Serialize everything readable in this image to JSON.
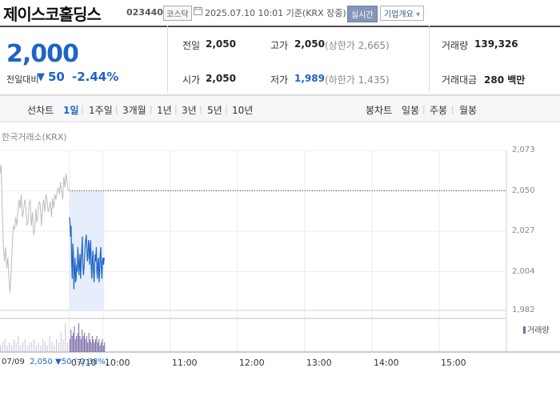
{
  "header": {
    "company_name": "제이스코홀딩스",
    "stock_code": "023440",
    "market_badge": "코스닥",
    "as_of": "2025.07.10 10:01 기준(KRX 장중)",
    "realtime_button": "실시간",
    "company_info_button": "기업개요",
    "company_info_arrow": "▾"
  },
  "quote": {
    "price": "2,000",
    "change_label": "전일대비",
    "change_direction": "▼",
    "change_value": "50",
    "change_percent": "-2.44%",
    "prev_close_label": "전일",
    "prev_close": "2,050",
    "open_label": "시가",
    "open": "2,050",
    "high_label": "고가",
    "high": "2,050",
    "upper_limit": "(상한가 2,665)",
    "low_label": "저가",
    "low": "1,989",
    "lower_limit": "(하한가 1,435)",
    "volume_label": "거래량",
    "volume": "139,326",
    "amount_label": "거래대금",
    "amount": "280 백만"
  },
  "periods": {
    "line_label": "선차트",
    "line_tabs": [
      "1일",
      "1주일",
      "3개월",
      "1년",
      "3년",
      "5년",
      "10년"
    ],
    "active": "1일",
    "candle_label": "봉차트",
    "candle_tabs": [
      "일봉",
      "주봉",
      "월봉"
    ]
  },
  "colors": {
    "down": "#1f63c6",
    "prev_line": "#bdbdbd",
    "today_area": "#e6eefb",
    "volume": "#7b68a6"
  },
  "chart_data": {
    "type": "line",
    "source_label": "한국거래소(KRX)",
    "y_ticks": [
      "2,073",
      "2,050",
      "2,027",
      "2,004",
      "1,982"
    ],
    "ylim": [
      1982,
      2073
    ],
    "reference_line": 2050,
    "x_ticks": [
      "07/10",
      "10:00",
      "11:00",
      "12:00",
      "13:00",
      "14:00",
      "15:00"
    ],
    "x_domain_minutes": [
      -62,
      390
    ],
    "prev_day_label": "07/09",
    "series": [
      {
        "x": [
          -62,
          -61,
          -60,
          -59,
          -58,
          -57,
          -56,
          -55,
          -54,
          -53,
          -52,
          -51,
          -50,
          -49,
          -48,
          -47,
          -46,
          -45,
          -44,
          -43,
          -42,
          -41,
          -40,
          -39,
          -38,
          -37,
          -36,
          -35,
          -34,
          -33,
          -32,
          -31,
          -30,
          -29,
          -28,
          -27,
          -26,
          -25,
          -24,
          -23,
          -22,
          -21,
          -20,
          -19,
          -18,
          -17,
          -16,
          -15,
          -14,
          -13,
          -12,
          -11,
          -10,
          -9,
          -8,
          -7,
          -6,
          -5,
          -4,
          -3,
          -2,
          -1
        ],
        "values": [
          2060,
          2065,
          2040,
          2018,
          2010,
          2018,
          2006,
          2012,
          2000,
          1992,
          2005,
          2020,
          2030,
          2028,
          2035,
          2030,
          2038,
          2045,
          2040,
          2048,
          2035,
          2038,
          2045,
          2042,
          2030,
          2032,
          2042,
          2045,
          2030,
          2038,
          2025,
          2028,
          2040,
          2032,
          2038,
          2044,
          2042,
          2030,
          2040,
          2045,
          2038,
          2048,
          2045,
          2038,
          2040,
          2044,
          2035,
          2046,
          2040,
          2048,
          2045,
          2050,
          2052,
          2048,
          2055,
          2050,
          2045,
          2058,
          2052,
          2060,
          2055,
          2050
        ]
      },
      {
        "x": [
          0,
          0.5,
          1,
          1.5,
          2,
          2.5,
          3,
          3.5,
          4,
          4.5,
          5,
          5.5,
          6,
          6.5,
          7,
          7.5,
          8,
          8.5,
          9,
          9.5,
          10,
          10.5,
          11,
          11.5,
          12,
          12.5,
          13,
          13.5,
          14,
          14.5,
          15,
          15.5,
          16,
          16.5,
          17,
          17.5,
          18,
          18.5,
          19,
          19.5,
          20,
          20.5,
          21,
          21.5,
          22,
          22.5,
          23,
          23.5,
          24,
          24.5,
          25,
          25.5,
          26,
          26.5,
          27,
          27.5,
          28,
          28.5,
          29,
          29.5,
          30,
          30.5,
          31
        ],
        "values": [
          2035,
          2032,
          2024,
          2030,
          2010,
          2000,
          2020,
          2015,
          1994,
          2005,
          2012,
          1998,
          2000,
          2008,
          2004,
          2018,
          2012,
          2002,
          2008,
          2014,
          2000,
          2010,
          2016,
          2024,
          2008,
          2002,
          2006,
          2012,
          2018,
          2022,
          2025,
          2018,
          2010,
          2012,
          2022,
          2020,
          2008,
          2016,
          2022,
          2006,
          2000,
          2012,
          2016,
          2004,
          1998,
          2008,
          2014,
          2010,
          2018,
          2004,
          2000,
          2010,
          2012,
          1998,
          2004,
          2014,
          2018,
          2006,
          2000,
          2010,
          2012,
          2008,
          2012
        ]
      }
    ],
    "volume": {
      "x": [
        -62,
        -60,
        -58,
        -56,
        -54,
        -52,
        -50,
        -48,
        -46,
        -44,
        -42,
        -40,
        -38,
        -36,
        -34,
        -32,
        -30,
        -28,
        -26,
        -24,
        -22,
        -20,
        -18,
        -16,
        -14,
        -12,
        -10,
        -8,
        -6,
        -4,
        -2,
        0,
        1,
        2,
        3,
        4,
        5,
        6,
        7,
        8,
        9,
        10,
        11,
        12,
        13,
        14,
        15,
        16,
        17,
        18,
        19,
        20,
        21,
        22,
        23,
        24,
        25,
        26,
        27,
        28,
        29,
        30,
        31
      ],
      "values": [
        2,
        3,
        4,
        2,
        3,
        2,
        4,
        3,
        5,
        2,
        3,
        4,
        2,
        3,
        3,
        4,
        2,
        3,
        2,
        4,
        3,
        2,
        5,
        3,
        2,
        4,
        3,
        6,
        4,
        9,
        3,
        4,
        7,
        5,
        6,
        8,
        4,
        5,
        6,
        9,
        5,
        4,
        7,
        5,
        6,
        4,
        5,
        3,
        6,
        4,
        3,
        5,
        4,
        3,
        4,
        5,
        3,
        4,
        2,
        3,
        4,
        2,
        3
      ],
      "label": "거래량"
    },
    "footer": {
      "prev_date": "07/09",
      "prev_close": "2,050",
      "prev_arrow": "▼",
      "prev_change": "50",
      "prev_pct": "(-2.38%)"
    }
  }
}
